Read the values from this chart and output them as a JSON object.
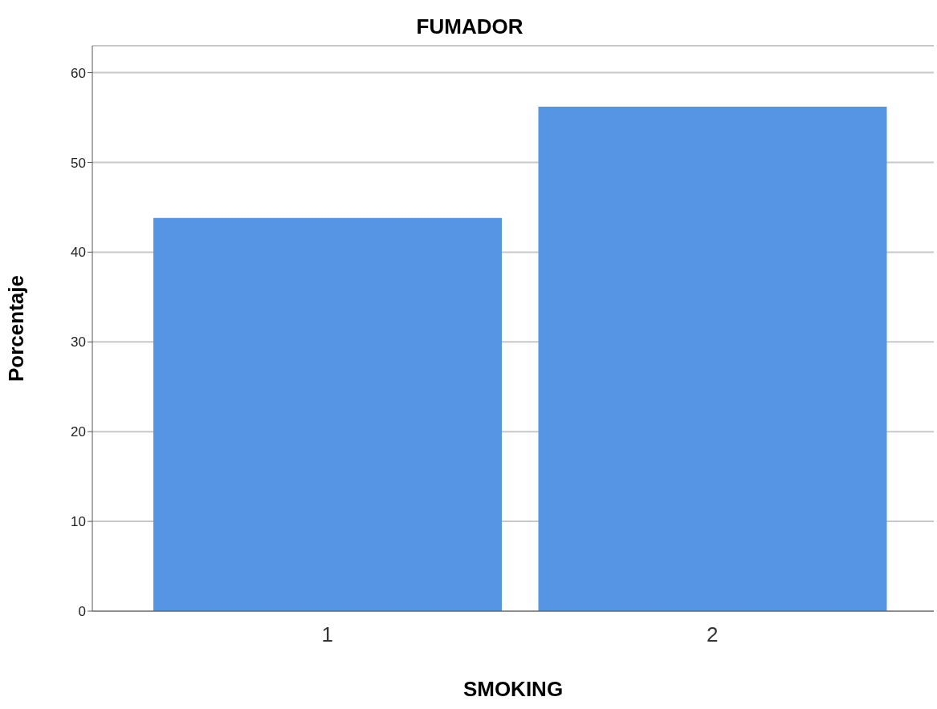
{
  "chart_data": {
    "type": "bar",
    "title": "FUMADOR",
    "xlabel": "SMOKING",
    "ylabel": "Porcentaje",
    "categories": [
      "1",
      "2"
    ],
    "values": [
      43.8,
      56.2
    ],
    "color": "#5595e3",
    "ylim": [
      0,
      63
    ],
    "yticks": [
      0,
      10,
      20,
      30,
      40,
      50,
      60
    ],
    "grid": "y"
  }
}
